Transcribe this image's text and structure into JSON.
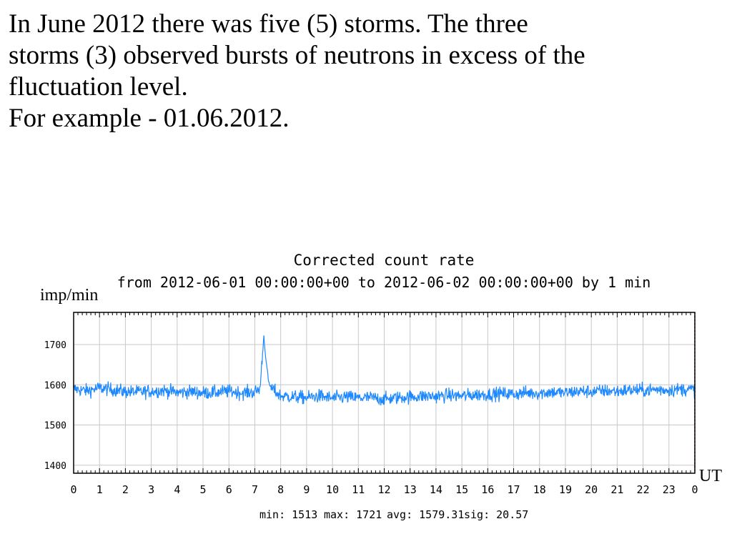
{
  "intro": {
    "line1": "In June 2012 there was five (5) storms. The three",
    "line2": "storms (3) observed bursts of neutrons in excess of the",
    "line3": "fluctuation level.",
    "line4": "For example  - 01.06.2012."
  },
  "chart_data": {
    "type": "line",
    "title": "Corrected count rate",
    "subtitle": "from 2012-06-01 00:00:00+00 to 2012-06-02 00:00:00+00 by  1 min",
    "ylabel": "imp/min",
    "xlabel": "UT",
    "ylim": [
      1380,
      1780
    ],
    "xlim": [
      0,
      24
    ],
    "y_ticks": [
      1400,
      1500,
      1600,
      1700
    ],
    "y_tick_labels": [
      "1400",
      "1500",
      "1600",
      "1700"
    ],
    "x_ticks": [
      0,
      1,
      2,
      3,
      4,
      5,
      6,
      7,
      8,
      9,
      10,
      11,
      12,
      13,
      14,
      15,
      16,
      17,
      18,
      19,
      20,
      21,
      22,
      23,
      24
    ],
    "x_tick_labels": [
      "0",
      "1",
      "2",
      "3",
      "4",
      "5",
      "6",
      "7",
      "8",
      "9",
      "10",
      "11",
      "12",
      "13",
      "14",
      "15",
      "16",
      "17",
      "18",
      "19",
      "20",
      "21",
      "22",
      "23",
      "0"
    ],
    "grid": true,
    "series": [
      {
        "color": "#1e88ff",
        "x_unit": "hours UT",
        "x": [
          0,
          0.5,
          1,
          1.5,
          2,
          2.5,
          3,
          3.5,
          4,
          4.5,
          5,
          5.5,
          6,
          6.5,
          7,
          7.2,
          7.35,
          7.45,
          7.55,
          7.7,
          8,
          8.5,
          9,
          9.5,
          10,
          10.5,
          11,
          11.5,
          12,
          12.5,
          13,
          13.5,
          14,
          14.5,
          15,
          15.5,
          16,
          16.5,
          17,
          17.5,
          18,
          18.5,
          19,
          19.5,
          20,
          20.5,
          21,
          21.5,
          22,
          22.5,
          23,
          23.5,
          24
        ],
        "y": [
          1590,
          1585,
          1592,
          1588,
          1583,
          1582,
          1584,
          1586,
          1581,
          1583,
          1580,
          1581,
          1584,
          1580,
          1582,
          1590,
          1721,
          1650,
          1600,
          1588,
          1572,
          1570,
          1568,
          1572,
          1566,
          1570,
          1567,
          1568,
          1564,
          1568,
          1570,
          1572,
          1571,
          1574,
          1572,
          1575,
          1576,
          1578,
          1577,
          1580,
          1579,
          1582,
          1580,
          1584,
          1583,
          1585,
          1584,
          1587,
          1586,
          1588,
          1587,
          1589,
          1588
        ]
      }
    ],
    "stats": {
      "min": "min: 1513",
      "max": "max: 1721",
      "avg": "avg: 1579.31",
      "sig": "sig: 20.57"
    }
  }
}
